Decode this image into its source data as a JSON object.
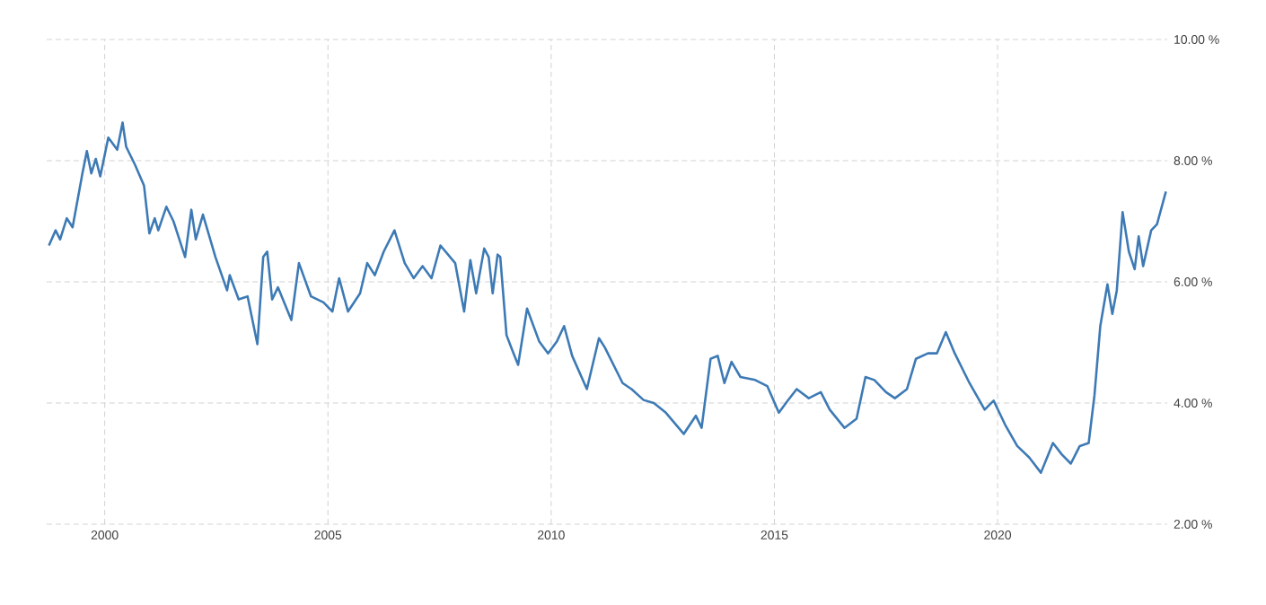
{
  "chart_data": {
    "type": "line",
    "xlim": [
      1998.7,
      2023.8
    ],
    "ylim": [
      2,
      10
    ],
    "grid": true,
    "xticks": [
      2000,
      2005,
      2010,
      2015,
      2020
    ],
    "yticks": [
      {
        "value": 2,
        "label": "2.00 %"
      },
      {
        "value": 4,
        "label": "4.00 %"
      },
      {
        "value": 6,
        "label": "6.00 %"
      },
      {
        "value": 8,
        "label": "8.00 %"
      },
      {
        "value": 10,
        "label": "10.00 %"
      }
    ],
    "series": [
      {
        "color": "#3d7ab5",
        "x": [
          1998.75,
          1998.9,
          1999.0,
          1999.15,
          1999.28,
          1999.5,
          1999.6,
          1999.7,
          1999.8,
          1999.9,
          2000.08,
          2000.28,
          2000.4,
          2000.48,
          2000.68,
          2000.88,
          2001.0,
          2001.12,
          2001.2,
          2001.38,
          2001.54,
          2001.8,
          2001.94,
          2002.04,
          2002.2,
          2002.48,
          2002.74,
          2002.8,
          2003.0,
          2003.2,
          2003.42,
          2003.55,
          2003.64,
          2003.75,
          2003.88,
          2004.18,
          2004.35,
          2004.62,
          2004.9,
          2005.1,
          2005.25,
          2005.45,
          2005.72,
          2005.88,
          2006.05,
          2006.25,
          2006.49,
          2006.72,
          2006.92,
          2007.12,
          2007.32,
          2007.52,
          2007.85,
          2008.05,
          2008.19,
          2008.32,
          2008.5,
          2008.6,
          2008.69,
          2008.8,
          2008.86,
          2009.0,
          2009.13,
          2009.26,
          2009.46,
          2009.73,
          2009.93,
          2010.13,
          2010.29,
          2010.47,
          2010.8,
          2011.07,
          2011.2,
          2011.6,
          2011.8,
          2012.07,
          2012.3,
          2012.57,
          2012.97,
          2013.24,
          2013.37,
          2013.57,
          2013.73,
          2013.88,
          2014.04,
          2014.24,
          2014.57,
          2014.84,
          2015.1,
          2015.3,
          2015.5,
          2015.77,
          2016.04,
          2016.24,
          2016.57,
          2016.84,
          2017.04,
          2017.24,
          2017.5,
          2017.7,
          2017.97,
          2018.17,
          2018.44,
          2018.64,
          2018.84,
          2019.04,
          2019.37,
          2019.71,
          2019.91,
          2020.17,
          2020.44,
          2020.71,
          2020.97,
          2021.24,
          2021.44,
          2021.64,
          2021.84,
          2022.04,
          2022.17,
          2022.3,
          2022.46,
          2022.57,
          2022.67,
          2022.8,
          2022.94,
          2023.07,
          2023.16,
          2023.26,
          2023.44,
          2023.57,
          2023.77
        ],
        "values": [
          6.6,
          6.85,
          6.7,
          7.05,
          6.9,
          7.79,
          8.16,
          7.79,
          8.03,
          7.74,
          8.38,
          8.18,
          8.63,
          8.23,
          7.93,
          7.59,
          6.8,
          7.05,
          6.85,
          7.24,
          7.0,
          6.41,
          7.19,
          6.7,
          7.11,
          6.41,
          5.86,
          6.11,
          5.71,
          5.76,
          4.97,
          6.41,
          6.5,
          5.71,
          5.91,
          5.37,
          6.31,
          5.76,
          5.66,
          5.51,
          6.06,
          5.51,
          5.81,
          6.31,
          6.11,
          6.5,
          6.85,
          6.31,
          6.06,
          6.26,
          6.06,
          6.6,
          6.31,
          5.51,
          6.36,
          5.81,
          6.55,
          6.41,
          5.81,
          6.45,
          6.41,
          5.12,
          4.87,
          4.63,
          5.56,
          5.02,
          4.82,
          5.02,
          5.27,
          4.78,
          4.23,
          5.07,
          4.92,
          4.33,
          4.23,
          4.05,
          4.0,
          3.84,
          3.49,
          3.79,
          3.59,
          4.73,
          4.78,
          4.33,
          4.68,
          4.43,
          4.38,
          4.28,
          3.84,
          4.04,
          4.23,
          4.08,
          4.18,
          3.89,
          3.59,
          3.74,
          4.43,
          4.38,
          4.18,
          4.08,
          4.23,
          4.73,
          4.82,
          4.82,
          5.17,
          4.82,
          4.33,
          3.89,
          4.04,
          3.64,
          3.29,
          3.1,
          2.85,
          3.34,
          3.15,
          3.0,
          3.29,
          3.34,
          4.13,
          5.27,
          5.96,
          5.47,
          5.86,
          7.15,
          6.5,
          6.21,
          6.75,
          6.26,
          6.85,
          6.95,
          7.49
        ]
      }
    ]
  }
}
